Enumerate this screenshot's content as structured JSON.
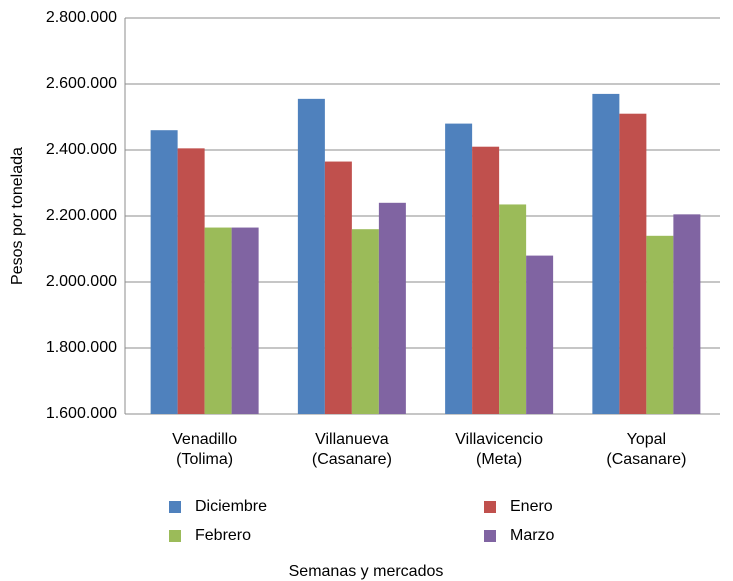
{
  "chart_data": {
    "type": "bar",
    "categories": [
      "Venadillo (Tolima)",
      "Villanueva (Casanare)",
      "Villavicencio (Meta)",
      "Yopal (Casanare)"
    ],
    "series": [
      {
        "name": "Diciembre",
        "color": "#4f81bd",
        "values": [
          2460000,
          2555000,
          2480000,
          2570000
        ]
      },
      {
        "name": "Enero",
        "color": "#c0504d",
        "values": [
          2405000,
          2365000,
          2410000,
          2510000
        ]
      },
      {
        "name": "Febrero",
        "color": "#9bbb59",
        "values": [
          2165000,
          2160000,
          2235000,
          2140000
        ]
      },
      {
        "name": "Marzo",
        "color": "#8064a2",
        "values": [
          2165000,
          2240000,
          2080000,
          2205000
        ]
      }
    ],
    "x_label": "Semanas y mercados",
    "y_label": "Pesos por tonelada",
    "ylim": [
      1600000,
      2800000
    ],
    "yticks": [
      {
        "value": 1600000,
        "label": "1.600.000"
      },
      {
        "value": 1800000,
        "label": "1.800.000"
      },
      {
        "value": 2000000,
        "label": "2.000.000"
      },
      {
        "value": 2200000,
        "label": "2.200.000"
      },
      {
        "value": 2400000,
        "label": "2.400.000"
      },
      {
        "value": 2600000,
        "label": "2.600.000"
      },
      {
        "value": 2800000,
        "label": "2.800.000"
      }
    ],
    "grid": true
  }
}
